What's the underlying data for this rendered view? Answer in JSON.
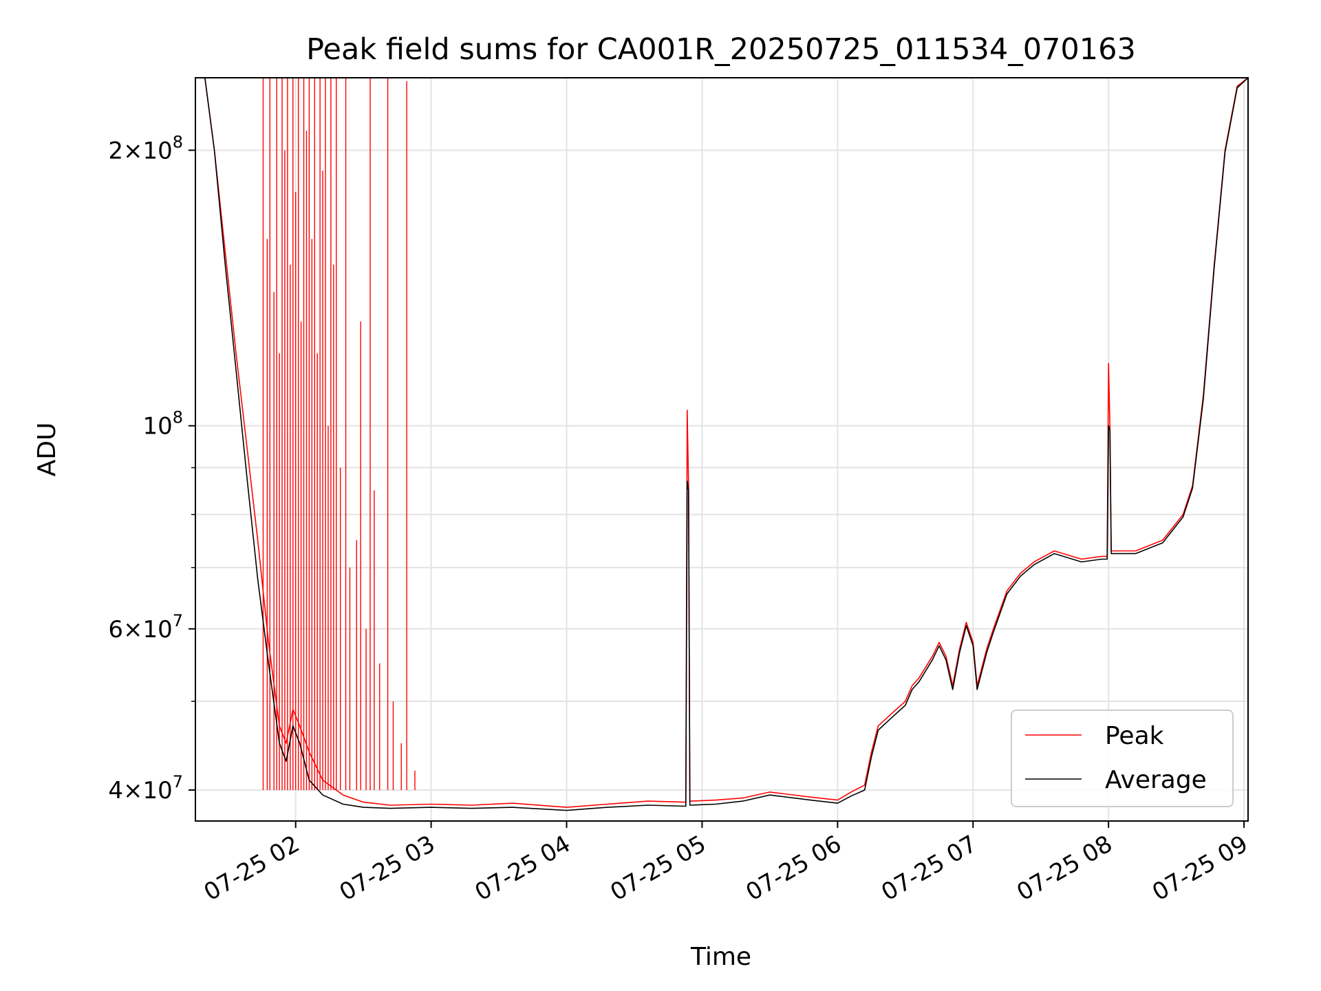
{
  "chart_data": {
    "type": "line",
    "title": "Peak field sums for CA001R_20250725_011534_070163",
    "xlabel": "Time",
    "ylabel": "ADU",
    "yscale": "log",
    "grid": true,
    "legend_position": "lower-right",
    "x_tick_labels": [
      "07-25 02",
      "07-25 03",
      "07-25 04",
      "07-25 05",
      "07-25 06",
      "07-25 07",
      "07-25 08",
      "07-25 09"
    ],
    "x_tick_hours": [
      2,
      3,
      4,
      5,
      6,
      7,
      8,
      9
    ],
    "y_major_ticks": [
      {
        "value": 40000000,
        "mantissa": "4",
        "exponent": "7"
      },
      {
        "value": 60000000,
        "mantissa": "6",
        "exponent": "7"
      },
      {
        "value": 100000000,
        "mantissa": "",
        "exponent": "8"
      },
      {
        "value": 200000000,
        "mantissa": "2",
        "exponent": "8"
      }
    ],
    "y_minor_ticks": [
      50000000,
      70000000,
      80000000,
      90000000
    ],
    "xlim_hours": [
      1.26,
      9.03
    ],
    "ylim": [
      37000000,
      240000000
    ],
    "series": [
      {
        "name": "Peak",
        "color": "#ff0000",
        "points": [
          [
            1.26,
            240000000
          ],
          [
            1.33,
            240000000
          ],
          [
            1.4,
            200000000
          ],
          [
            1.48,
            155000000
          ],
          [
            1.56,
            120000000
          ],
          [
            1.64,
            95000000
          ],
          [
            1.72,
            75000000
          ],
          [
            1.8,
            58000000
          ],
          [
            1.88,
            47000000
          ],
          [
            1.93,
            45000000
          ],
          [
            1.98,
            49000000
          ],
          [
            2.03,
            47000000
          ],
          [
            2.1,
            44000000
          ],
          [
            2.2,
            41000000
          ],
          [
            2.35,
            39500000
          ],
          [
            2.5,
            38800000
          ],
          [
            2.7,
            38500000
          ],
          [
            3.0,
            38600000
          ],
          [
            3.3,
            38500000
          ],
          [
            3.6,
            38700000
          ],
          [
            4.0,
            38300000
          ],
          [
            4.3,
            38600000
          ],
          [
            4.6,
            38900000
          ],
          [
            4.88,
            38800000
          ],
          [
            4.89,
            104000000
          ],
          [
            4.9,
            86000000
          ],
          [
            4.91,
            38900000
          ],
          [
            5.1,
            39000000
          ],
          [
            5.3,
            39200000
          ],
          [
            5.5,
            39800000
          ],
          [
            5.8,
            39300000
          ],
          [
            6.0,
            39000000
          ],
          [
            6.1,
            39800000
          ],
          [
            6.2,
            40500000
          ],
          [
            6.25,
            44000000
          ],
          [
            6.3,
            47000000
          ],
          [
            6.4,
            48500000
          ],
          [
            6.5,
            50000000
          ],
          [
            6.55,
            52000000
          ],
          [
            6.6,
            53000000
          ],
          [
            6.7,
            56000000
          ],
          [
            6.75,
            58000000
          ],
          [
            6.8,
            56000000
          ],
          [
            6.85,
            52000000
          ],
          [
            6.9,
            57000000
          ],
          [
            6.95,
            61000000
          ],
          [
            7.0,
            58000000
          ],
          [
            7.03,
            52000000
          ],
          [
            7.1,
            57000000
          ],
          [
            7.15,
            60000000
          ],
          [
            7.25,
            66000000
          ],
          [
            7.35,
            69000000
          ],
          [
            7.45,
            71000000
          ],
          [
            7.6,
            73000000
          ],
          [
            7.8,
            71500000
          ],
          [
            7.95,
            72000000
          ],
          [
            7.99,
            72000000
          ],
          [
            8.0,
            117000000
          ],
          [
            8.01,
            100000000
          ],
          [
            8.02,
            73000000
          ],
          [
            8.2,
            73000000
          ],
          [
            8.4,
            75000000
          ],
          [
            8.55,
            80000000
          ],
          [
            8.62,
            86000000
          ],
          [
            8.7,
            108000000
          ],
          [
            8.78,
            150000000
          ],
          [
            8.86,
            200000000
          ],
          [
            8.95,
            235000000
          ],
          [
            9.03,
            240000000
          ]
        ]
      },
      {
        "name": "Average",
        "color": "#000000",
        "points": [
          [
            1.26,
            240000000
          ],
          [
            1.33,
            240000000
          ],
          [
            1.4,
            200000000
          ],
          [
            1.48,
            150000000
          ],
          [
            1.56,
            115000000
          ],
          [
            1.64,
            88000000
          ],
          [
            1.72,
            68000000
          ],
          [
            1.8,
            55000000
          ],
          [
            1.88,
            45000000
          ],
          [
            1.93,
            43000000
          ],
          [
            1.98,
            47000000
          ],
          [
            2.03,
            45000000
          ],
          [
            2.1,
            41000000
          ],
          [
            2.2,
            39500000
          ],
          [
            2.35,
            38600000
          ],
          [
            2.5,
            38300000
          ],
          [
            2.7,
            38200000
          ],
          [
            3.0,
            38300000
          ],
          [
            3.3,
            38200000
          ],
          [
            3.6,
            38300000
          ],
          [
            4.0,
            38000000
          ],
          [
            4.3,
            38300000
          ],
          [
            4.6,
            38500000
          ],
          [
            4.88,
            38400000
          ],
          [
            4.89,
            87000000
          ],
          [
            4.9,
            85000000
          ],
          [
            4.91,
            38500000
          ],
          [
            5.1,
            38600000
          ],
          [
            5.3,
            38900000
          ],
          [
            5.5,
            39500000
          ],
          [
            5.8,
            39000000
          ],
          [
            6.0,
            38700000
          ],
          [
            6.1,
            39400000
          ],
          [
            6.2,
            40000000
          ],
          [
            6.25,
            43500000
          ],
          [
            6.3,
            46500000
          ],
          [
            6.4,
            48000000
          ],
          [
            6.5,
            49500000
          ],
          [
            6.55,
            51500000
          ],
          [
            6.6,
            52500000
          ],
          [
            6.7,
            55500000
          ],
          [
            6.75,
            57500000
          ],
          [
            6.8,
            55500000
          ],
          [
            6.85,
            51500000
          ],
          [
            6.9,
            56500000
          ],
          [
            6.95,
            60500000
          ],
          [
            7.0,
            57500000
          ],
          [
            7.03,
            51500000
          ],
          [
            7.1,
            56500000
          ],
          [
            7.15,
            59500000
          ],
          [
            7.25,
            65500000
          ],
          [
            7.35,
            68500000
          ],
          [
            7.45,
            70500000
          ],
          [
            7.6,
            72500000
          ],
          [
            7.8,
            71000000
          ],
          [
            7.95,
            71500000
          ],
          [
            7.99,
            71500000
          ],
          [
            8.0,
            100000000
          ],
          [
            8.01,
            99000000
          ],
          [
            8.02,
            72500000
          ],
          [
            8.2,
            72500000
          ],
          [
            8.4,
            74500000
          ],
          [
            8.55,
            79500000
          ],
          [
            8.62,
            85500000
          ],
          [
            8.7,
            107000000
          ],
          [
            8.78,
            149000000
          ],
          [
            8.86,
            199000000
          ],
          [
            8.95,
            234000000
          ],
          [
            9.03,
            240000000
          ]
        ]
      }
    ],
    "peak_spikes": [
      [
        1.76,
        240000000
      ],
      [
        1.79,
        160000000
      ],
      [
        1.81,
        240000000
      ],
      [
        1.84,
        140000000
      ],
      [
        1.86,
        240000000
      ],
      [
        1.88,
        120000000
      ],
      [
        1.9,
        240000000
      ],
      [
        1.92,
        200000000
      ],
      [
        1.94,
        240000000
      ],
      [
        1.96,
        150000000
      ],
      [
        1.98,
        240000000
      ],
      [
        2.0,
        180000000
      ],
      [
        2.02,
        240000000
      ],
      [
        2.04,
        130000000
      ],
      [
        2.06,
        240000000
      ],
      [
        2.08,
        210000000
      ],
      [
        2.1,
        240000000
      ],
      [
        2.12,
        160000000
      ],
      [
        2.14,
        240000000
      ],
      [
        2.16,
        120000000
      ],
      [
        2.18,
        240000000
      ],
      [
        2.2,
        190000000
      ],
      [
        2.22,
        240000000
      ],
      [
        2.24,
        100000000
      ],
      [
        2.26,
        240000000
      ],
      [
        2.28,
        150000000
      ],
      [
        2.3,
        240000000
      ],
      [
        2.33,
        90000000
      ],
      [
        2.37,
        240000000
      ],
      [
        2.4,
        70000000
      ],
      [
        2.45,
        75000000
      ],
      [
        2.48,
        130000000
      ],
      [
        2.52,
        60000000
      ],
      [
        2.55,
        240000000
      ],
      [
        2.58,
        85000000
      ],
      [
        2.62,
        55000000
      ],
      [
        2.68,
        240000000
      ],
      [
        2.72,
        50000000
      ],
      [
        2.78,
        45000000
      ],
      [
        2.82,
        238000000
      ],
      [
        2.88,
        42000000
      ]
    ]
  }
}
